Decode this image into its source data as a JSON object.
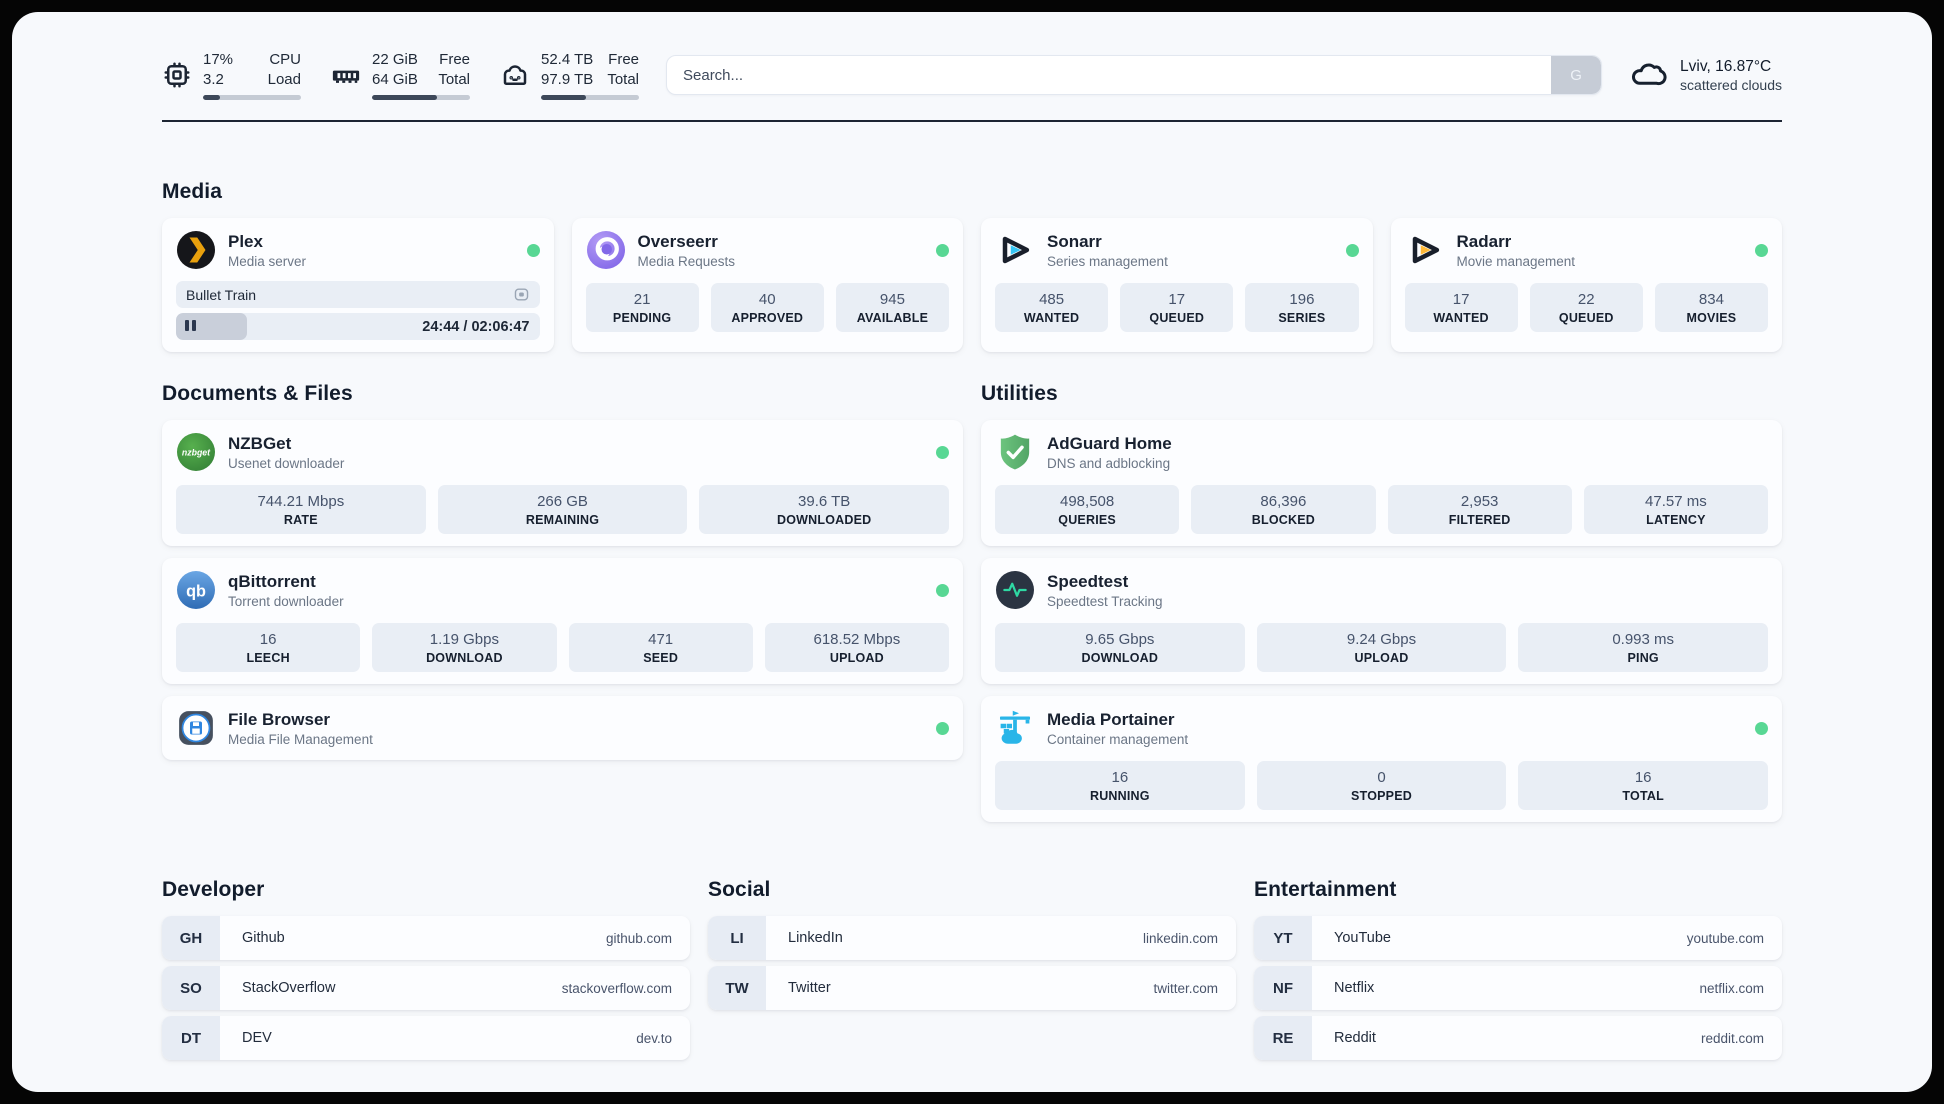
{
  "theme": {
    "status_online": "#58d794",
    "panel_bg": "#f7f9fc",
    "stat_box_bg": "#e9eef5",
    "progress_fill": "#3d4859"
  },
  "header": {
    "resources": [
      {
        "icon": "cpu-icon",
        "value_top": "17%",
        "value_bottom": "3.2",
        "label_top": "CPU",
        "label_bottom": "Load",
        "progress_pct": 17
      },
      {
        "icon": "ram-icon",
        "value_top": "22 GiB",
        "value_bottom": "64 GiB",
        "label_top": "Free",
        "label_bottom": "Total",
        "progress_pct": 66
      },
      {
        "icon": "disk-icon",
        "value_top": "52.4 TB",
        "value_bottom": "97.9 TB",
        "label_top": "Free",
        "label_bottom": "Total",
        "progress_pct": 46
      }
    ],
    "search": {
      "placeholder": "Search...",
      "engine_button": "G"
    },
    "weather": {
      "location_temp": "Lviv, 16.87°C",
      "condition": "scattered clouds"
    }
  },
  "sections": {
    "media": {
      "title": "Media",
      "cards": [
        {
          "name": "Plex",
          "description": "Media server",
          "online": true,
          "now_playing": {
            "title": "Bullet Train",
            "progress_pct": 19.5,
            "time_display": "24:44 / 02:06:47"
          }
        },
        {
          "name": "Overseerr",
          "description": "Media Requests",
          "online": true,
          "stats": [
            {
              "value": "21",
              "label": "PENDING"
            },
            {
              "value": "40",
              "label": "APPROVED"
            },
            {
              "value": "945",
              "label": "AVAILABLE"
            }
          ]
        },
        {
          "name": "Sonarr",
          "description": "Series management",
          "online": true,
          "stats": [
            {
              "value": "485",
              "label": "WANTED"
            },
            {
              "value": "17",
              "label": "QUEUED"
            },
            {
              "value": "196",
              "label": "SERIES"
            }
          ]
        },
        {
          "name": "Radarr",
          "description": "Movie management",
          "online": true,
          "stats": [
            {
              "value": "17",
              "label": "WANTED"
            },
            {
              "value": "22",
              "label": "QUEUED"
            },
            {
              "value": "834",
              "label": "MOVIES"
            }
          ]
        }
      ]
    },
    "documents": {
      "title": "Documents & Files",
      "cards": [
        {
          "name": "NZBGet",
          "description": "Usenet downloader",
          "online": true,
          "stats": [
            {
              "value": "744.21 Mbps",
              "label": "RATE"
            },
            {
              "value": "266 GB",
              "label": "REMAINING"
            },
            {
              "value": "39.6 TB",
              "label": "DOWNLOADED"
            }
          ]
        },
        {
          "name": "qBittorrent",
          "description": "Torrent downloader",
          "online": true,
          "stats": [
            {
              "value": "16",
              "label": "LEECH"
            },
            {
              "value": "1.19 Gbps",
              "label": "DOWNLOAD"
            },
            {
              "value": "471",
              "label": "SEED"
            },
            {
              "value": "618.52 Mbps",
              "label": "UPLOAD"
            }
          ]
        },
        {
          "name": "File Browser",
          "description": "Media File Management",
          "online": true,
          "stats": []
        }
      ]
    },
    "utilities": {
      "title": "Utilities",
      "cards": [
        {
          "name": "AdGuard Home",
          "description": "DNS and adblocking",
          "online": false,
          "stats": [
            {
              "value": "498,508",
              "label": "QUERIES"
            },
            {
              "value": "86,396",
              "label": "BLOCKED"
            },
            {
              "value": "2,953",
              "label": "FILTERED"
            },
            {
              "value": "47.57 ms",
              "label": "LATENCY"
            }
          ]
        },
        {
          "name": "Speedtest",
          "description": "Speedtest Tracking",
          "online": false,
          "stats": [
            {
              "value": "9.65 Gbps",
              "label": "DOWNLOAD"
            },
            {
              "value": "9.24 Gbps",
              "label": "UPLOAD"
            },
            {
              "value": "0.993 ms",
              "label": "PING"
            }
          ]
        },
        {
          "name": "Media Portainer",
          "description": "Container management",
          "online": true,
          "stats": [
            {
              "value": "16",
              "label": "RUNNING"
            },
            {
              "value": "0",
              "label": "STOPPED"
            },
            {
              "value": "16",
              "label": "TOTAL"
            }
          ]
        }
      ]
    }
  },
  "bookmarks": [
    {
      "title": "Developer",
      "items": [
        {
          "abbr": "GH",
          "name": "Github",
          "url": "github.com"
        },
        {
          "abbr": "SO",
          "name": "StackOverflow",
          "url": "stackoverflow.com"
        },
        {
          "abbr": "DT",
          "name": "DEV",
          "url": "dev.to"
        }
      ]
    },
    {
      "title": "Social",
      "items": [
        {
          "abbr": "LI",
          "name": "LinkedIn",
          "url": "linkedin.com"
        },
        {
          "abbr": "TW",
          "name": "Twitter",
          "url": "twitter.com"
        }
      ]
    },
    {
      "title": "Entertainment",
      "items": [
        {
          "abbr": "YT",
          "name": "YouTube",
          "url": "youtube.com"
        },
        {
          "abbr": "NF",
          "name": "Netflix",
          "url": "netflix.com"
        },
        {
          "abbr": "RE",
          "name": "Reddit",
          "url": "reddit.com"
        }
      ]
    }
  ]
}
